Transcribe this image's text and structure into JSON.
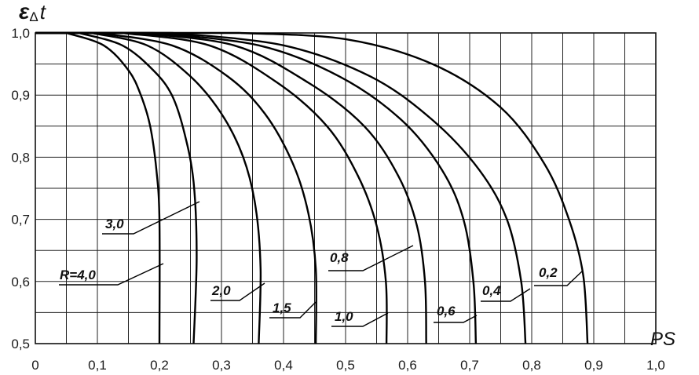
{
  "chart_data": {
    "type": "line",
    "title": "",
    "xlabel": "PS",
    "ylabel_main": "ε",
    "ylabel_sub": "Δ",
    "ylabel_tail": "t",
    "xlim": [
      0,
      1.0
    ],
    "ylim": [
      0.5,
      1.0
    ],
    "grid": true,
    "x_ticks": [
      "0",
      "0,1",
      "0,2",
      "0,3",
      "0,4",
      "0,5",
      "0,6",
      "0,7",
      "0,8",
      "0,9",
      "1,0"
    ],
    "y_ticks": [
      "0,5",
      "0,6",
      "0,7",
      "0,8",
      "0,9",
      "1,0"
    ],
    "series": [
      {
        "label": "R=4,0",
        "x": [
          0.05,
          0.11,
          0.15,
          0.17,
          0.185,
          0.195,
          0.2,
          0.2
        ],
        "y": [
          1.0,
          0.98,
          0.94,
          0.9,
          0.85,
          0.78,
          0.7,
          0.5
        ]
      },
      {
        "label": "3,0",
        "x": [
          0.07,
          0.14,
          0.19,
          0.22,
          0.24,
          0.255,
          0.26,
          0.255
        ],
        "y": [
          1.0,
          0.98,
          0.94,
          0.9,
          0.84,
          0.76,
          0.64,
          0.5
        ]
      },
      {
        "label": "2,0",
        "x": [
          0.09,
          0.18,
          0.25,
          0.3,
          0.335,
          0.355,
          0.363,
          0.36
        ],
        "y": [
          1.0,
          0.98,
          0.93,
          0.87,
          0.8,
          0.72,
          0.62,
          0.5
        ]
      },
      {
        "label": "1,5",
        "x": [
          0.1,
          0.22,
          0.31,
          0.37,
          0.415,
          0.44,
          0.452,
          0.452
        ],
        "y": [
          1.0,
          0.98,
          0.93,
          0.87,
          0.79,
          0.71,
          0.62,
          0.5
        ]
      },
      {
        "label": "1,0",
        "x": [
          0.14,
          0.28,
          0.39,
          0.47,
          0.52,
          0.55,
          0.565,
          0.566
        ],
        "y": [
          1.0,
          0.98,
          0.92,
          0.85,
          0.77,
          0.69,
          0.6,
          0.5
        ]
      },
      {
        "label": "0,8",
        "x": [
          0.16,
          0.32,
          0.44,
          0.53,
          0.585,
          0.615,
          0.628,
          0.63
        ],
        "y": [
          1.0,
          0.98,
          0.92,
          0.85,
          0.77,
          0.69,
          0.6,
          0.5
        ]
      },
      {
        "label": "0,6",
        "x": [
          0.19,
          0.36,
          0.49,
          0.59,
          0.655,
          0.69,
          0.706,
          0.71
        ],
        "y": [
          1.0,
          0.98,
          0.93,
          0.86,
          0.78,
          0.7,
          0.6,
          0.5
        ]
      },
      {
        "label": "0,4",
        "x": [
          0.22,
          0.4,
          0.54,
          0.64,
          0.715,
          0.76,
          0.783,
          0.79
        ],
        "y": [
          1.0,
          0.98,
          0.93,
          0.86,
          0.78,
          0.7,
          0.6,
          0.5
        ]
      },
      {
        "label": "0,2",
        "x": [
          0.33,
          0.5,
          0.64,
          0.75,
          0.82,
          0.86,
          0.883,
          0.89
        ],
        "y": [
          1.0,
          0.99,
          0.95,
          0.88,
          0.79,
          0.7,
          0.61,
          0.5
        ]
      }
    ]
  }
}
